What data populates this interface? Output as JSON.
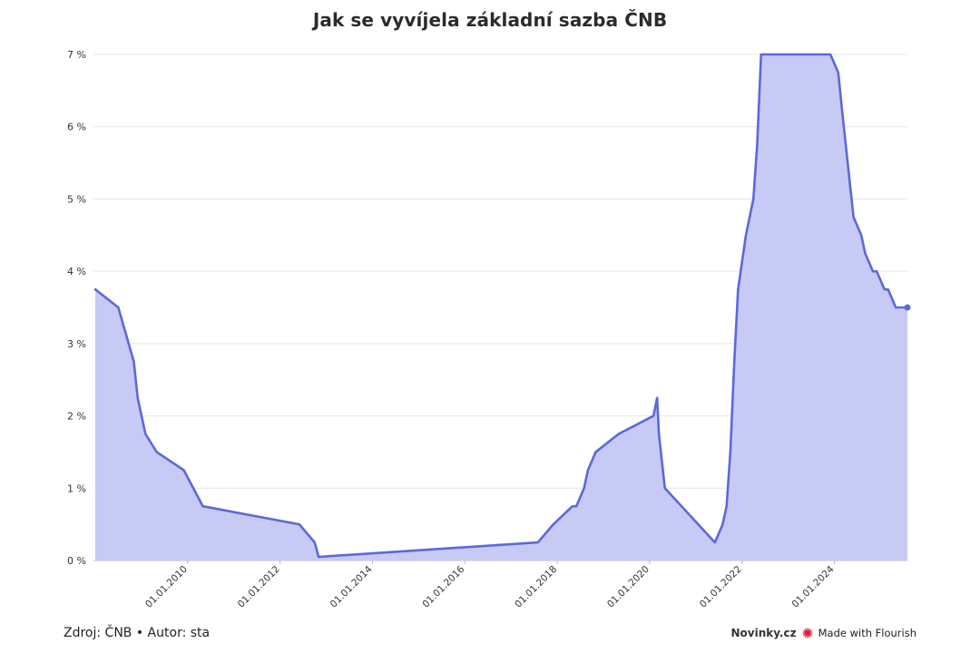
{
  "title": "Jak se vyvíjela základní sazba ČNB",
  "footer": {
    "source": "Zdroj: ČNB • Autor: sta",
    "brand": "Novinky.cz",
    "made_with": "Made with Flourish"
  },
  "colors": {
    "line": "#5d68d9",
    "area": "#c6caf4",
    "grid": "#e6e6e6",
    "flourish": "#e0163a"
  },
  "chart_data": {
    "type": "area",
    "title": "Jak se vyvíjela základní sazba ČNB",
    "xlabel": "",
    "ylabel": "",
    "ylim": [
      0,
      7
    ],
    "xlim": [
      "2008-01-01",
      "2025-08-01"
    ],
    "yticks": [
      "0 %",
      "1 %",
      "2 %",
      "3 %",
      "4 %",
      "5 %",
      "6 %",
      "7 %"
    ],
    "xticks": [
      "01.01.2010",
      "01.01.2012",
      "01.01.2014",
      "01.01.2016",
      "01.01.2018",
      "01.01.2020",
      "01.01.2022",
      "01.01.2024"
    ],
    "grid": true,
    "series": [
      {
        "x": [
          "2008-01-01",
          "2008-07-01",
          "2008-11-01",
          "2008-12-01",
          "2009-02-01",
          "2009-05-01",
          "2009-12-01",
          "2010-05-01",
          "2012-06-01",
          "2012-10-01",
          "2012-11-01",
          "2017-08-01",
          "2017-12-01",
          "2018-05-01",
          "2018-06-01",
          "2018-08-01",
          "2018-09-01",
          "2018-11-01",
          "2019-05-01",
          "2020-02-01",
          "2020-03-01",
          "2020-03-15",
          "2020-05-01",
          "2021-06-01",
          "2021-08-01",
          "2021-09-01",
          "2021-10-01",
          "2021-11-01",
          "2021-12-01",
          "2022-02-01",
          "2022-04-01",
          "2022-05-01",
          "2022-06-01",
          "2022-07-01",
          "2023-12-01",
          "2024-02-01",
          "2024-03-01",
          "2024-05-01",
          "2024-06-01",
          "2024-08-01",
          "2024-09-01",
          "2024-11-01",
          "2024-12-01",
          "2025-02-01",
          "2025-03-01",
          "2025-05-01",
          "2025-06-01",
          "2025-08-01"
        ],
        "values": [
          3.75,
          3.5,
          2.75,
          2.25,
          1.75,
          1.5,
          1.25,
          0.75,
          0.5,
          0.25,
          0.05,
          0.25,
          0.5,
          0.75,
          0.75,
          1.0,
          1.25,
          1.5,
          1.75,
          2.0,
          2.25,
          1.75,
          1.0,
          0.25,
          0.5,
          0.75,
          1.5,
          2.75,
          3.75,
          4.5,
          5.0,
          5.75,
          7.0,
          7.0,
          7.0,
          6.75,
          6.25,
          5.25,
          4.75,
          4.5,
          4.25,
          4.0,
          4.0,
          3.75,
          3.75,
          3.5,
          3.5,
          3.5
        ]
      }
    ]
  }
}
